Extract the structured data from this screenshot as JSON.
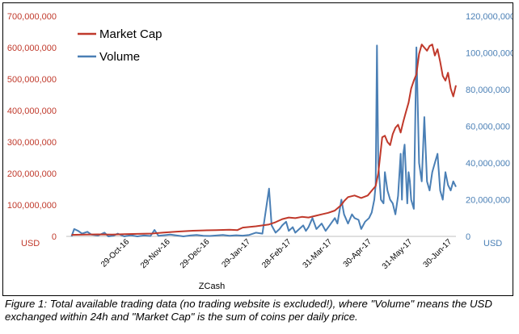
{
  "chart_data": {
    "type": "line",
    "title": "",
    "xlabel": "ZCash",
    "left_axis": {
      "unit": "USD",
      "min": 0,
      "max": 700000000,
      "ticks": [
        "0",
        "100,000,000",
        "200,000,000",
        "300,000,000",
        "400,000,000",
        "500,000,000",
        "600,000,000",
        "700,000,000"
      ],
      "color": "#c0392b"
    },
    "right_axis": {
      "unit": "USD",
      "min": 0,
      "max": 120000000,
      "ticks": [
        "0",
        "20,000,000",
        "40,000,000",
        "60,000,000",
        "80,000,000",
        "100,000,000",
        "120,000,000"
      ],
      "color": "#4a7fb5"
    },
    "x_ticks": [
      "29-Oct-16",
      "29-Nov-16",
      "29-Dec-16",
      "29-Jan-17",
      "28-Feb-17",
      "31-Mar-17",
      "30-Apr-17",
      "31-May-17",
      "30-Jun-17"
    ],
    "x_range_days": [
      0,
      259
    ],
    "legend_position": "top-left",
    "series": [
      {
        "name": "Market Cap",
        "axis": "left",
        "color": "#c0392b",
        "points": [
          [
            0,
            5000000
          ],
          [
            10,
            6000000
          ],
          [
            20,
            6500000
          ],
          [
            31,
            6000000
          ],
          [
            40,
            7000000
          ],
          [
            50,
            8000000
          ],
          [
            61,
            9000000
          ],
          [
            70,
            12000000
          ],
          [
            80,
            15000000
          ],
          [
            92,
            18000000
          ],
          [
            100,
            19000000
          ],
          [
            110,
            20000000
          ],
          [
            120,
            21000000
          ],
          [
            126,
            20000000
          ],
          [
            130,
            28000000
          ],
          [
            140,
            32000000
          ],
          [
            150,
            38000000
          ],
          [
            155,
            45000000
          ],
          [
            160,
            55000000
          ],
          [
            165,
            60000000
          ],
          [
            170,
            58000000
          ],
          [
            175,
            62000000
          ],
          [
            180,
            60000000
          ],
          [
            185,
            65000000
          ],
          [
            190,
            70000000
          ],
          [
            195,
            75000000
          ],
          [
            200,
            82000000
          ],
          [
            205,
            100000000
          ],
          [
            207,
            112000000
          ],
          [
            210,
            125000000
          ],
          [
            215,
            130000000
          ],
          [
            220,
            122000000
          ],
          [
            225,
            130000000
          ],
          [
            228,
            145000000
          ],
          [
            231,
            160000000
          ],
          [
            233,
            200000000
          ],
          [
            236,
            315000000
          ],
          [
            238,
            320000000
          ],
          [
            240,
            300000000
          ],
          [
            242,
            290000000
          ],
          [
            244,
            325000000
          ],
          [
            246,
            345000000
          ],
          [
            248,
            355000000
          ],
          [
            250,
            330000000
          ],
          [
            252,
            365000000
          ],
          [
            254,
            395000000
          ],
          [
            256,
            425000000
          ],
          [
            258,
            470000000
          ],
          [
            260,
            495000000
          ],
          [
            262,
            515000000
          ],
          [
            264,
            580000000
          ],
          [
            266,
            610000000
          ],
          [
            268,
            600000000
          ],
          [
            270,
            590000000
          ],
          [
            272,
            605000000
          ],
          [
            274,
            610000000
          ],
          [
            276,
            575000000
          ],
          [
            278,
            595000000
          ],
          [
            280,
            555000000
          ],
          [
            282,
            510000000
          ],
          [
            284,
            495000000
          ],
          [
            286,
            520000000
          ],
          [
            288,
            470000000
          ],
          [
            290,
            445000000
          ],
          [
            292,
            480000000
          ]
        ]
      },
      {
        "name": "Volume",
        "axis": "right",
        "color": "#4a7fb5",
        "points": [
          [
            0,
            0
          ],
          [
            2,
            4000000
          ],
          [
            5,
            3000000
          ],
          [
            8,
            1500000
          ],
          [
            12,
            2500000
          ],
          [
            15,
            1000000
          ],
          [
            20,
            500000
          ],
          [
            25,
            2000000
          ],
          [
            28,
            0
          ],
          [
            32,
            400000
          ],
          [
            35,
            1500000
          ],
          [
            40,
            0
          ],
          [
            45,
            600000
          ],
          [
            50,
            0
          ],
          [
            55,
            500000
          ],
          [
            60,
            200000
          ],
          [
            63,
            3500000
          ],
          [
            66,
            300000
          ],
          [
            70,
            600000
          ],
          [
            75,
            1000000
          ],
          [
            80,
            500000
          ],
          [
            85,
            0
          ],
          [
            90,
            500000
          ],
          [
            95,
            800000
          ],
          [
            100,
            300000
          ],
          [
            105,
            200000
          ],
          [
            110,
            500000
          ],
          [
            115,
            800000
          ],
          [
            120,
            300000
          ],
          [
            125,
            600000
          ],
          [
            130,
            400000
          ],
          [
            135,
            800000
          ],
          [
            140,
            2000000
          ],
          [
            145,
            1500000
          ],
          [
            150,
            26000000
          ],
          [
            152,
            6000000
          ],
          [
            155,
            2000000
          ],
          [
            158,
            4000000
          ],
          [
            160,
            6000000
          ],
          [
            163,
            8000000
          ],
          [
            165,
            3000000
          ],
          [
            168,
            5000000
          ],
          [
            170,
            2000000
          ],
          [
            173,
            4000000
          ],
          [
            176,
            6000000
          ],
          [
            178,
            3000000
          ],
          [
            180,
            5000000
          ],
          [
            183,
            10000000
          ],
          [
            186,
            4000000
          ],
          [
            190,
            7000000
          ],
          [
            193,
            3000000
          ],
          [
            196,
            6000000
          ],
          [
            200,
            10000000
          ],
          [
            202,
            7000000
          ],
          [
            205,
            20000000
          ],
          [
            207,
            12000000
          ],
          [
            210,
            7000000
          ],
          [
            213,
            12000000
          ],
          [
            215,
            10000000
          ],
          [
            218,
            9000000
          ],
          [
            220,
            4000000
          ],
          [
            223,
            8000000
          ],
          [
            226,
            10000000
          ],
          [
            228,
            13000000
          ],
          [
            230,
            20000000
          ],
          [
            231,
            28000000
          ],
          [
            232,
            104000000
          ],
          [
            233,
            40000000
          ],
          [
            235,
            20000000
          ],
          [
            237,
            18000000
          ],
          [
            238,
            35000000
          ],
          [
            240,
            25000000
          ],
          [
            242,
            20000000
          ],
          [
            244,
            18000000
          ],
          [
            246,
            12000000
          ],
          [
            248,
            22000000
          ],
          [
            250,
            45000000
          ],
          [
            251,
            20000000
          ],
          [
            252,
            45000000
          ],
          [
            253,
            50000000
          ],
          [
            255,
            18000000
          ],
          [
            256,
            35000000
          ],
          [
            257,
            30000000
          ],
          [
            258,
            20000000
          ],
          [
            260,
            15000000
          ],
          [
            262,
            103000000
          ],
          [
            264,
            40000000
          ],
          [
            266,
            30000000
          ],
          [
            268,
            65000000
          ],
          [
            270,
            30000000
          ],
          [
            272,
            25000000
          ],
          [
            274,
            35000000
          ],
          [
            276,
            40000000
          ],
          [
            278,
            45000000
          ],
          [
            280,
            25000000
          ],
          [
            282,
            20000000
          ],
          [
            284,
            35000000
          ],
          [
            286,
            28000000
          ],
          [
            288,
            25000000
          ],
          [
            290,
            30000000
          ],
          [
            292,
            27000000
          ]
        ]
      }
    ]
  },
  "caption": "Figure 1: Total available trading data (no trading website is excluded!), where \"Volume\" means the USD exchanged within 24h and \"Market Cap\" is the sum of coins per daily price."
}
